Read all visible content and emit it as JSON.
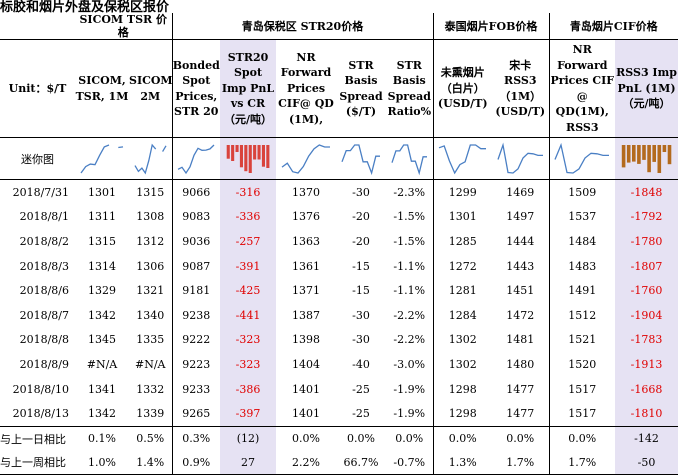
{
  "title": "标胶和烟片外盘及保税区报价",
  "groups": {
    "sicom": "SICOM TSR 价格",
    "bonded": "青岛保税区 STR20价格",
    "thai": "泰国烟片FOB价格",
    "qingdao": "青岛烟片CIF价格"
  },
  "headers": {
    "unit": "Unit：$/T",
    "sicom1": "SICOM, TSR, 1M",
    "sicom2": "SICOM,TSR, 2M",
    "bonded_spot": "Bonded Spot Prices, STR 20",
    "str20_pnl": "STR20 Spot Imp PnL vs CR（元/吨）",
    "nr_forward": "NR Forward Prices CIF@ QD (1M),",
    "str_basis": "STR Basis Spread ($/T)",
    "str_basis_ratio": "STR Basis Spread Ratio%",
    "white_sheet": "未熏烟片（白片）(USD/T)",
    "rss3_thai": "宋卡 RSS3（1M）(USD/T)",
    "nr_forward_rss3": "NR Forward Prices CIF @ QD(1M), RSS3",
    "rss3_pnl": "RSS3 Imp PnL (1M)（元/吨）"
  },
  "mini_label": "迷你图",
  "colors": {
    "negative": "#e00000",
    "highlight_bg": "#e6e2f3",
    "spark_line": "#4a7fc4",
    "spark_bar_red": "#d9433c",
    "spark_bar_brown": "#b36a1e"
  },
  "rows": [
    {
      "date": "2018/7/31",
      "sicom1": "1301",
      "sicom2": "1315",
      "bonded": "9066",
      "pnl": "-316",
      "nr": "1370",
      "basis": "-30",
      "ratio": "-2.3%",
      "white": "1299",
      "rss3": "1469",
      "nr_rss3": "1509",
      "rss3_pnl": "-1848"
    },
    {
      "date": "2018/8/1",
      "sicom1": "1311",
      "sicom2": "1308",
      "bonded": "9083",
      "pnl": "-336",
      "nr": "1376",
      "basis": "-20",
      "ratio": "-1.5%",
      "white": "1301",
      "rss3": "1497",
      "nr_rss3": "1537",
      "rss3_pnl": "-1792"
    },
    {
      "date": "2018/8/2",
      "sicom1": "1315",
      "sicom2": "1312",
      "bonded": "9036",
      "pnl": "-257",
      "nr": "1363",
      "basis": "-20",
      "ratio": "-1.5%",
      "white": "1285",
      "rss3": "1444",
      "nr_rss3": "1484",
      "rss3_pnl": "-1780"
    },
    {
      "date": "2018/8/3",
      "sicom1": "1314",
      "sicom2": "1306",
      "bonded": "9087",
      "pnl": "-391",
      "nr": "1361",
      "basis": "-15",
      "ratio": "-1.1%",
      "white": "1272",
      "rss3": "1443",
      "nr_rss3": "1483",
      "rss3_pnl": "-1807"
    },
    {
      "date": "2018/8/6",
      "sicom1": "1329",
      "sicom2": "1321",
      "bonded": "9181",
      "pnl": "-425",
      "nr": "1371",
      "basis": "-15",
      "ratio": "-1.1%",
      "white": "1281",
      "rss3": "1451",
      "nr_rss3": "1491",
      "rss3_pnl": "-1760"
    },
    {
      "date": "2018/8/7",
      "sicom1": "1342",
      "sicom2": "1340",
      "bonded": "9238",
      "pnl": "-441",
      "nr": "1387",
      "basis": "-30",
      "ratio": "-2.2%",
      "white": "1284",
      "rss3": "1472",
      "nr_rss3": "1512",
      "rss3_pnl": "-1904"
    },
    {
      "date": "2018/8/8",
      "sicom1": "1345",
      "sicom2": "1335",
      "bonded": "9222",
      "pnl": "-323",
      "nr": "1398",
      "basis": "-30",
      "ratio": "-2.2%",
      "white": "1302",
      "rss3": "1481",
      "nr_rss3": "1521",
      "rss3_pnl": "-1783"
    },
    {
      "date": "2018/8/9",
      "sicom1": "#N/A",
      "sicom2": "#N/A",
      "bonded": "9223",
      "pnl": "-323",
      "nr": "1404",
      "basis": "-40",
      "ratio": "-3.0%",
      "white": "1302",
      "rss3": "1480",
      "nr_rss3": "1520",
      "rss3_pnl": "-1913"
    },
    {
      "date": "2018/8/10",
      "sicom1": "1341",
      "sicom2": "1332",
      "bonded": "9233",
      "pnl": "-386",
      "nr": "1401",
      "basis": "-25",
      "ratio": "-1.9%",
      "white": "1298",
      "rss3": "1477",
      "nr_rss3": "1517",
      "rss3_pnl": "-1668"
    },
    {
      "date": "2018/8/13",
      "sicom1": "1342",
      "sicom2": "1339",
      "bonded": "9265",
      "pnl": "-397",
      "nr": "1401",
      "basis": "-25",
      "ratio": "-1.9%",
      "white": "1298",
      "rss3": "1477",
      "nr_rss3": "1517",
      "rss3_pnl": "-1810"
    }
  ],
  "compare": [
    {
      "label": "与上一日相比",
      "sicom1": "0.1%",
      "sicom2": "0.5%",
      "bonded": "0.3%",
      "pnl": "(12)",
      "nr": "0.0%",
      "basis": "0.0%",
      "ratio": "0.0%",
      "white": "0.0%",
      "rss3": "0.0%",
      "nr_rss3": "0.0%",
      "rss3_pnl": "-142"
    },
    {
      "label": "与上一周相比",
      "sicom1": "1.0%",
      "sicom2": "1.4%",
      "bonded": "0.9%",
      "pnl": "27",
      "nr": "2.2%",
      "basis": "66.7%",
      "ratio": "-0.7%",
      "white": "1.3%",
      "rss3": "1.7%",
      "nr_rss3": "1.7%",
      "rss3_pnl": "-50"
    }
  ]
}
